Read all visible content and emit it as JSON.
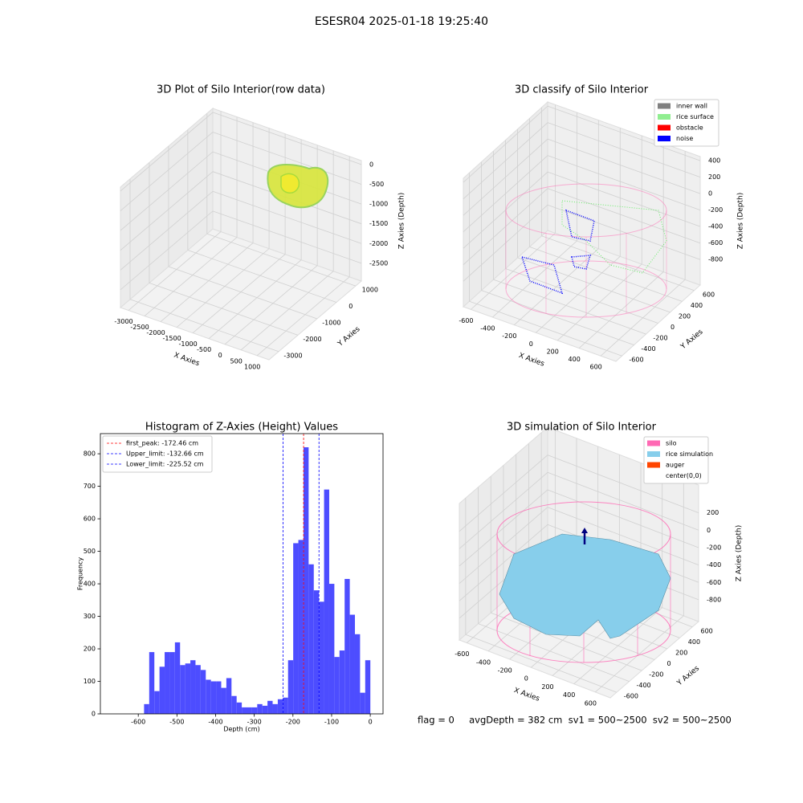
{
  "title": "ESESR04 2025-01-18 19:25:40",
  "chart_data": [
    {
      "type": "scatter3d",
      "title": "3D Plot of Silo Interior(row data)",
      "xlabel": "X Axies",
      "ylabel": "Y Axies",
      "zlabel": "Z Axies (Depth)",
      "xlim": [
        -3250,
        1370
      ],
      "ylim": [
        -3500,
        1300
      ],
      "zlim": [
        -2950,
        100
      ],
      "xticks": [
        -3000,
        -2500,
        -2000,
        -1500,
        -1000,
        -500,
        0,
        500,
        1000
      ],
      "yticks": [
        -3000,
        -2000,
        -1000,
        0,
        1000
      ],
      "zticks": [
        0,
        -500,
        -1000,
        -1500,
        -2000,
        -2500
      ]
    },
    {
      "type": "scatter3d",
      "title": "3D classify of Silo Interior",
      "xlabel": "X Axies",
      "ylabel": "Y Axies",
      "zlabel": "Z Axies (Depth)",
      "xlim": [
        -670,
        740
      ],
      "ylim": [
        -700,
        700
      ],
      "zlim": [
        -1110,
        450
      ],
      "xticks": [
        -600,
        -400,
        -200,
        0,
        200,
        400,
        600
      ],
      "yticks": [
        -600,
        -400,
        -200,
        0,
        200,
        400,
        600
      ],
      "zticks": [
        400,
        200,
        0,
        -200,
        -400,
        -600,
        -800
      ],
      "series": [
        {
          "name": "inner wall",
          "color": "gray"
        },
        {
          "name": "rice surface",
          "color": "lightgreen"
        },
        {
          "name": "obstacle",
          "color": "red"
        },
        {
          "name": "noise",
          "color": "blue"
        }
      ]
    },
    {
      "type": "histogram",
      "title": "Histogram of Z-Axies (Height) Values",
      "xlabel": "Depth (cm)",
      "ylabel": "Frequency",
      "color": "#4d4dff",
      "bins": [
        -585,
        -571.7,
        -558.4,
        -545.1,
        -531.8,
        -518.5,
        -505.2,
        -491.9,
        -478.6,
        -465.3,
        -452,
        -438.7,
        -425.4,
        -412.1,
        -398.8,
        -385.5,
        -372.2,
        -358.9,
        -345.6,
        -332.3,
        -319,
        -305.7,
        -292.4,
        -279.1,
        -265.8,
        -252.5,
        -239.2,
        -225.9,
        -212.6,
        -199.3,
        -186,
        -172.7,
        -159.4,
        -146.1,
        -132.8,
        -119.5,
        -106.2,
        -92.9,
        -79.6,
        -66.3,
        -53,
        -39.7,
        -26.4,
        -13.1,
        0.2
      ],
      "values": [
        30,
        190,
        70,
        145,
        190,
        190,
        220,
        150,
        155,
        165,
        150,
        135,
        105,
        100,
        100,
        80,
        110,
        55,
        35,
        20,
        20,
        20,
        30,
        25,
        40,
        30,
        45,
        50,
        165,
        525,
        535,
        820,
        460,
        380,
        345,
        690,
        400,
        175,
        195,
        415,
        305,
        245,
        65,
        165
      ],
      "xlim": [
        -698,
        33
      ],
      "ylim": [
        0,
        862
      ],
      "xticks": [
        -600,
        -500,
        -400,
        -300,
        -200,
        -100,
        0
      ],
      "yticks": [
        0,
        100,
        200,
        300,
        400,
        500,
        600,
        700,
        800
      ],
      "lines": [
        {
          "name": "first_peak: -172.46 cm",
          "value": -172.46,
          "color": "red"
        },
        {
          "name": "Upper_limit: -132.66 cm",
          "value": -132.66,
          "color": "blue"
        },
        {
          "name": "Lower_limit: -225.52 cm",
          "value": -225.52,
          "color": "blue"
        }
      ],
      "legend": "upper left"
    },
    {
      "type": "surface3d",
      "title": "3D simulation of Silo Interior",
      "xlabel": "X Axies",
      "ylabel": "Y Axies",
      "zlabel": "Z Axies (Depth)",
      "xlim": [
        -670,
        740
      ],
      "ylim": [
        -700,
        700
      ],
      "zlim": [
        -1050,
        520
      ],
      "xticks": [
        -600,
        -400,
        -200,
        0,
        200,
        400,
        600
      ],
      "yticks": [
        -600,
        -400,
        -200,
        0,
        200,
        400,
        600
      ],
      "zticks": [
        200,
        0,
        -200,
        -400,
        -600,
        -800
      ],
      "series": [
        {
          "name": "silo",
          "color": "hotpink"
        },
        {
          "name": "rice simulation",
          "color": "skyblue"
        },
        {
          "name": "auger",
          "color": "orangered"
        },
        {
          "name": "center(0,0)"
        }
      ]
    }
  ],
  "footer": "flag = 0     avgDepth = 382 cm  sv1 = 500~2500  sv2 = 500~2500"
}
